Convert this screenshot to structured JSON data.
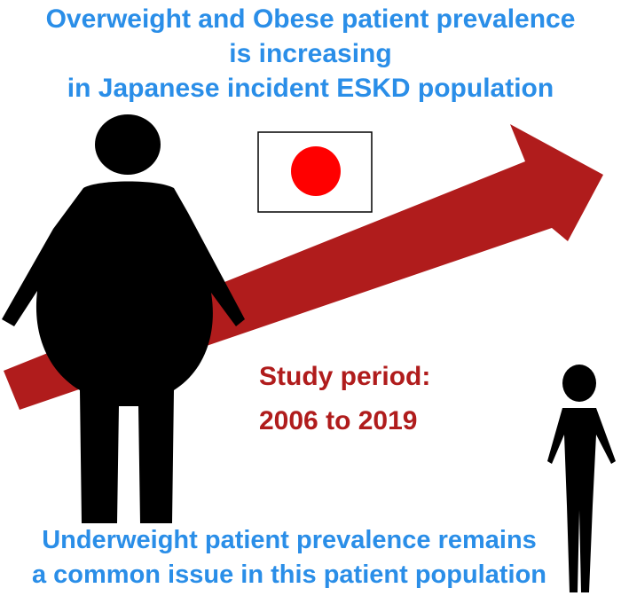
{
  "title": {
    "line1": "Overweight and Obese patient prevalence",
    "line2": "is increasing",
    "line3": "in Japanese incident ESKD population"
  },
  "study": {
    "line1": "Study period:",
    "line2": "2006 to 2019"
  },
  "footer": {
    "line1": "Underweight patient prevalence remains",
    "line2": "a common issue in this patient population"
  },
  "colors": {
    "heading_blue": "#2a8ee8",
    "arrow_red": "#b01c1c",
    "flag_red": "#ff0000",
    "figure_black": "#000000"
  }
}
